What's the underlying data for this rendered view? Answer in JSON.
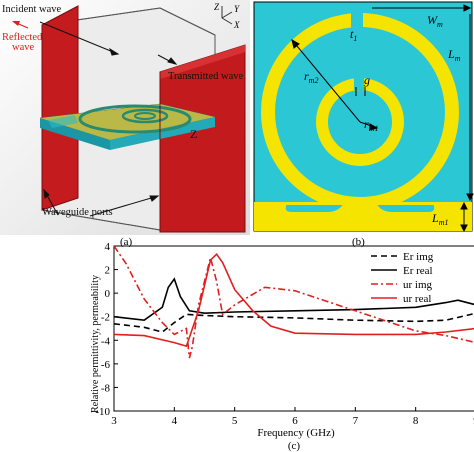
{
  "panel_a": {
    "caption": "(a)",
    "label_incident": "Incident wave",
    "label_reflected_1": "Reflected",
    "label_reflected_2": "wave",
    "label_transmitted": "Transmitted wave",
    "label_ports": "Waveguide ports",
    "axis_z": "Z",
    "axis_y": "Y",
    "axis_x": "X",
    "axis_cube_z": "Z",
    "colors": {
      "port": "#c0181c",
      "box_edge": "#555555",
      "substrate": "#22b8c8",
      "metal": "#c8a818"
    }
  },
  "panel_b": {
    "caption": "(b)",
    "label_wm_main": "W",
    "label_wm_sub": "m",
    "label_lm_main": "L",
    "label_lm_sub": "m",
    "label_t1_main": "t",
    "label_t1_sub": "1",
    "label_g": "g",
    "label_rm2_main": "r",
    "label_rm2_sub": "m2",
    "label_rm1_main": "r",
    "label_rm1_sub": "m1",
    "label_lm1_main": "L",
    "label_lm1_sub": "m1",
    "colors": {
      "background": "#2bc7d4",
      "metal": "#f5e300"
    }
  },
  "panel_c": {
    "caption": "(c)",
    "xlabel": "Frequency (GHz)",
    "ylabel": "Relative permittivity, permeability"
  },
  "chart_data": {
    "type": "line",
    "xlabel": "Frequency (GHz)",
    "ylabel": "Relative permittivity, permeability",
    "xlim": [
      3,
      9
    ],
    "ylim": [
      -10,
      4
    ],
    "xticks": [
      3,
      4,
      5,
      6,
      7,
      8,
      9
    ],
    "yticks": [
      -10,
      -8,
      -6,
      -4,
      -2,
      0,
      2,
      4
    ],
    "legend_position": "top-right",
    "grid": false,
    "series": [
      {
        "name": "Er img",
        "color": "#000000",
        "style": "dashed",
        "x": [
          3,
          3.5,
          3.8,
          4.0,
          4.2,
          4.5,
          5,
          6,
          7,
          8,
          8.5,
          9
        ],
        "y": [
          -2.6,
          -2.9,
          -3.3,
          -2.5,
          -1.8,
          -1.9,
          -2.0,
          -2.1,
          -2.3,
          -2.4,
          -2.3,
          -1.7
        ]
      },
      {
        "name": "Er real",
        "color": "#000000",
        "style": "solid",
        "x": [
          3,
          3.5,
          3.8,
          3.9,
          4.0,
          4.1,
          4.25,
          4.5,
          5,
          6,
          7,
          8,
          8.5,
          8.7,
          9
        ],
        "y": [
          -2.0,
          -2.3,
          -1.2,
          0.5,
          1.2,
          -0.3,
          -1.5,
          -1.7,
          -1.6,
          -1.5,
          -1.4,
          -1.2,
          -0.8,
          -0.6,
          -1.0
        ]
      },
      {
        "name": "ur img",
        "color": "#e02020",
        "style": "dashdot",
        "x": [
          3,
          3.2,
          3.5,
          3.8,
          4.0,
          4.2,
          4.25,
          4.3,
          4.4,
          4.5,
          4.6,
          4.7,
          4.8,
          5,
          5.5,
          6,
          7,
          8,
          8.5,
          9
        ],
        "y": [
          4.0,
          2.5,
          -0.5,
          -2.5,
          -3.5,
          -3.0,
          -5.5,
          -4.5,
          -1.0,
          1.0,
          3.0,
          1.0,
          -1.8,
          -1.0,
          0.5,
          0.2,
          -1.5,
          -3.2,
          -3.6,
          -4.2
        ]
      },
      {
        "name": "ur real",
        "color": "#e02020",
        "style": "solid",
        "x": [
          3,
          3.5,
          4.0,
          4.2,
          4.4,
          4.6,
          4.7,
          4.8,
          5.0,
          5.3,
          5.6,
          6,
          7,
          8,
          8.5,
          9
        ],
        "y": [
          -3.5,
          -3.6,
          -4.2,
          -4.5,
          -1.5,
          2.8,
          3.3,
          2.6,
          0.3,
          -1.5,
          -2.8,
          -3.4,
          -3.5,
          -3.5,
          -3.3,
          -3.0
        ]
      }
    ]
  }
}
